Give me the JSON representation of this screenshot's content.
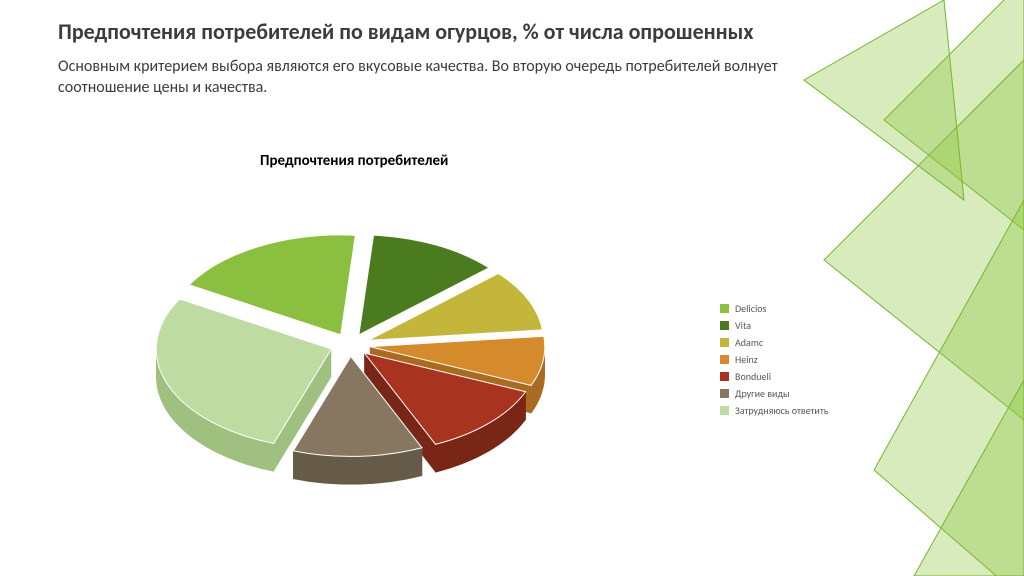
{
  "title": "Предпочтения потребителей по видам огурцов, % от числа опрошенных",
  "body_text": "Основным критерием выбора являются его вкусовые качества. Во вторую очередь потребителей волнует соотношение цены и качества.",
  "chart": {
    "type": "pie",
    "title": "Предпочтения потребителей",
    "title_fontsize": 15,
    "exploded_3d": true,
    "background_color": "#ffffff",
    "slices": [
      {
        "label": "Delicios",
        "value": 18,
        "color": "#8bbf3f",
        "side_color": "#6fa02f"
      },
      {
        "label": "Vita",
        "value": 12,
        "color": "#4a7b1f",
        "side_color": "#375d16"
      },
      {
        "label": "Adamc",
        "value": 10,
        "color": "#c4b63a",
        "side_color": "#9a8f2a"
      },
      {
        "label": "Heinz",
        "value": 8,
        "color": "#d58a2c",
        "side_color": "#a86b20"
      },
      {
        "label": "Bondueli",
        "value": 12,
        "color": "#a8331f",
        "side_color": "#7a2616"
      },
      {
        "label": "Другие виды",
        "value": 12,
        "color": "#877760",
        "side_color": "#665a48"
      },
      {
        "label": "Затрудняюсь ответить",
        "value": 28,
        "color": "#bedba1",
        "side_color": "#9fc07f"
      }
    ],
    "legend_fontsize": 10,
    "legend_text_color": "#595959"
  },
  "decoration": {
    "triangles_fill": "#8cc63f",
    "triangles_outline": "#74b62e",
    "triangles_fill_opacity": 0.35
  }
}
